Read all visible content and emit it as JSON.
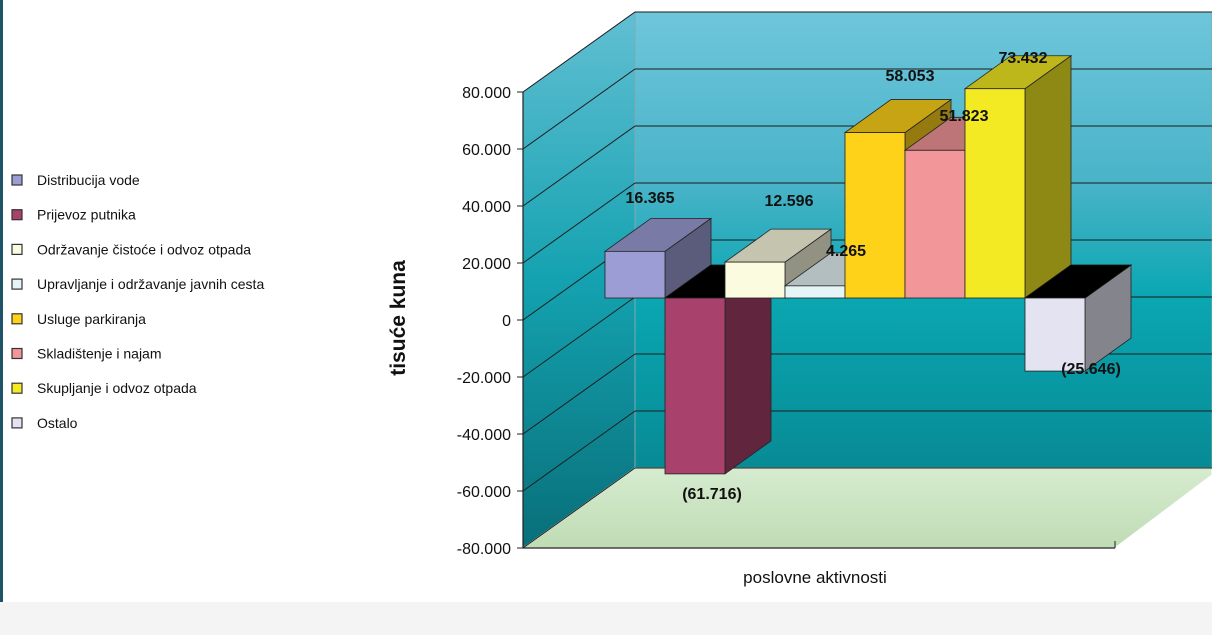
{
  "chart_data": {
    "type": "bar",
    "categories": [
      ""
    ],
    "series": [
      {
        "name": "Distribucija vode",
        "values": [
          16365
        ],
        "label": "16.365",
        "color": "#9d9dd6"
      },
      {
        "name": "Prijevoz putnika",
        "values": [
          -61716
        ],
        "label": "(61.716)",
        "color": "#a8416b"
      },
      {
        "name": "Održavanje čistoće i odvoz otpada",
        "values": [
          12596
        ],
        "label": "12.596",
        "color": "#fbfbe0"
      },
      {
        "name": "Upravljanje i održavanje javnih cesta",
        "values": [
          4265
        ],
        "label": "4.265",
        "color": "#e5f4f7"
      },
      {
        "name": "Usluge parkiranja",
        "values": [
          58053
        ],
        "label": "58.053",
        "color": "#ffd21a"
      },
      {
        "name": "Skladištenje i najam",
        "values": [
          51823
        ],
        "label": "51.823",
        "color": "#f2969a"
      },
      {
        "name": "Skupljanje i odvoz otpada",
        "values": [
          73432
        ],
        "label": "73.432",
        "color": "#f4ea24"
      },
      {
        "name": "Ostalo",
        "values": [
          -25646
        ],
        "label": "(25.646)",
        "color": "#e3e3f2"
      }
    ],
    "ylim": [
      -80000,
      80000
    ],
    "yticks": [
      -80000,
      -60000,
      -40000,
      -20000,
      0,
      20000,
      40000,
      60000,
      80000
    ],
    "ytick_labels": [
      "-80.000",
      "-60.000",
      "-40.000",
      "-20.000",
      "0",
      "20.000",
      "40.000",
      "60.000",
      "80.000"
    ],
    "xlabel": "poslovne aktivnosti",
    "ylabel": "tisuće kuna",
    "title": "",
    "grid": true,
    "legend_position": "left"
  }
}
